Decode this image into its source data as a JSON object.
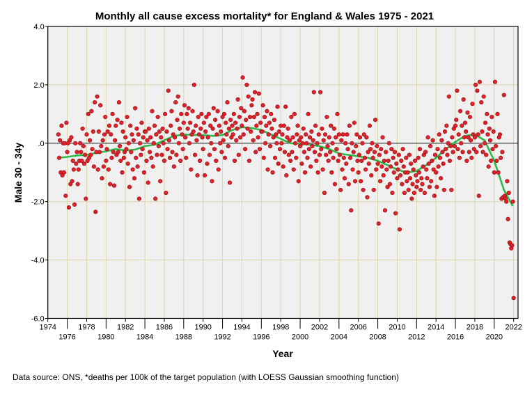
{
  "chart_data": {
    "type": "scatter",
    "title": "Monthly all cause excess mortality* for England & Wales 1975 - 2021",
    "xlabel": "Year",
    "ylabel": "Male 30 - 34y",
    "footnote": "Data source: ONS, *deaths per 100k of the target population (with LOESS Gaussian smoothing function)",
    "xlim": [
      1974,
      2022
    ],
    "ylim": [
      -6.0,
      4.0
    ],
    "x_ticks_upper": [
      "1974",
      "1978",
      "1982",
      "1986",
      "1990",
      "1994",
      "1998",
      "2002",
      "2006",
      "2010",
      "2014",
      "2018",
      "2022"
    ],
    "x_ticks_lower": [
      "1976",
      "1980",
      "1984",
      "1988",
      "1992",
      "1996",
      "2000",
      "2004",
      "2008",
      "2012",
      "2016",
      "2020"
    ],
    "y_ticks": [
      "4.0",
      "2.0",
      ".0",
      "-2.0",
      "-4.0",
      "-6.0"
    ],
    "y_tick_values": [
      4,
      2,
      0,
      -2,
      -4,
      -6
    ],
    "grid": true,
    "colors": {
      "points": "#e0202a",
      "smooth": "#2db84a",
      "grid": "#dcd6aa",
      "plot_bg": "#f0f0f0"
    },
    "series": [
      {
        "name": "monthly excess mortality",
        "start_year": 1975,
        "step": "month",
        "values": [
          0.3,
          -0.5,
          0.1,
          -1.0,
          0.6,
          -1.1,
          0.0,
          -1.0,
          0.0,
          -1.8,
          0.7,
          -0.3,
          0.0,
          -2.2,
          0.1,
          -1.4,
          0.2,
          -1.3,
          -0.6,
          -0.9,
          -2.1,
          0.0,
          -0.7,
          -0.3,
          -1.4,
          -0.9,
          -0.6,
          0.0,
          -0.3,
          -0.6,
          0.5,
          -0.1,
          -0.7,
          -0.4,
          -1.9,
          0.3,
          -0.6,
          1.0,
          -0.5,
          0.1,
          -0.4,
          1.1,
          -0.2,
          0.4,
          -0.8,
          1.4,
          -2.35,
          -0.3,
          1.6,
          -0.9,
          0.4,
          -0.3,
          1.3,
          -0.1,
          -1.2,
          0.1,
          -0.8,
          0.3,
          0.9,
          -0.6,
          -0.2,
          0.4,
          -0.9,
          0.6,
          -1.4,
          0.3,
          -0.5,
          1.0,
          -0.3,
          -1.45,
          0.1,
          0.6,
          -0.4,
          0.8,
          -0.3,
          1.4,
          -0.1,
          -0.6,
          0.7,
          -1.0,
          0.4,
          -0.5,
          -0.3,
          0.2,
          -0.2,
          0.9,
          -0.7,
          0.0,
          -1.5,
          0.6,
          -0.3,
          0.3,
          -0.9,
          0.1,
          -1.2,
          1.2,
          -0.5,
          0.5,
          -0.8,
          0.3,
          -1.9,
          0.0,
          -0.4,
          0.7,
          -0.2,
          0.2,
          -1.0,
          0.4,
          0.4,
          -0.6,
          0.1,
          -1.35,
          0.5,
          -0.3,
          0.2,
          -0.5,
          1.1,
          -0.8,
          0.0,
          0.6,
          -1.9,
          0.3,
          -0.4,
          0.9,
          -0.1,
          0.4,
          -1.3,
          0.2,
          -0.4,
          0.5,
          0.0,
          -0.6,
          1.0,
          -1.7,
          0.4,
          -0.2,
          1.8,
          0.1,
          -0.5,
          0.6,
          1.1,
          -0.3,
          0.3,
          -0.8,
          0.2,
          1.4,
          -0.4,
          0.8,
          1.6,
          0.0,
          0.5,
          -0.6,
          1.0,
          0.3,
          -0.2,
          0.7,
          1.3,
          0.2,
          -0.5,
          1.0,
          0.5,
          1.2,
          0.0,
          0.7,
          -0.9,
          0.3,
          1.1,
          0.4,
          2.0,
          -0.4,
          0.6,
          0.1,
          -1.1,
          0.9,
          0.3,
          -0.6,
          0.5,
          1.0,
          0.2,
          -0.2,
          0.7,
          -1.1,
          0.4,
          0.9,
          -0.7,
          0.2,
          1.0,
          -0.4,
          0.6,
          0.0,
          -1.3,
          0.5,
          1.2,
          -0.2,
          0.8,
          -0.6,
          0.3,
          1.1,
          -0.9,
          0.6,
          0.0,
          0.4,
          -0.3,
          0.9,
          0.1,
          1.0,
          -0.5,
          0.7,
          0.3,
          1.4,
          -0.1,
          0.5,
          -1.35,
          0.8,
          0.2,
          0.6,
          0.3,
          1.0,
          -0.6,
          0.7,
          0.1,
          0.5,
          1.5,
          -0.4,
          0.9,
          0.2,
          1.2,
          0.6,
          2.25,
          0.3,
          1.1,
          -0.2,
          0.8,
          2.0,
          0.5,
          1.6,
          -0.6,
          0.9,
          0.4,
          1.3,
          1.5,
          0.1,
          0.9,
          1.75,
          -0.3,
          0.6,
          1.0,
          0.2,
          1.7,
          -0.2,
          0.7,
          0.4,
          0.4,
          1.3,
          -0.5,
          0.9,
          0.0,
          0.6,
          1.1,
          -0.9,
          0.3,
          0.7,
          -0.1,
          1.0,
          0.5,
          -1.0,
          0.2,
          0.8,
          -0.5,
          0.3,
          0.0,
          1.25,
          -0.7,
          0.4,
          -0.2,
          0.6,
          0.0,
          0.3,
          -0.8,
          0.6,
          -0.3,
          1.25,
          -1.1,
          0.2,
          0.5,
          -0.4,
          0.1,
          -0.6,
          0.9,
          -0.3,
          0.2,
          -0.9,
          1.0,
          0.0,
          -0.5,
          0.3,
          0.6,
          -1.3,
          0.1,
          -0.1,
          0.2,
          -0.7,
          0.0,
          0.5,
          -0.3,
          -1.0,
          0.3,
          0.0,
          -0.5,
          1.0,
          -0.2,
          0.2,
          -0.8,
          0.4,
          -0.1,
          0.1,
          1.75,
          -0.3,
          0.6,
          -0.6,
          0.0,
          -1.0,
          0.3,
          -0.4,
          1.75,
          -0.2,
          0.5,
          -0.9,
          0.1,
          -1.7,
          0.3,
          -0.4,
          0.9,
          -0.1,
          -0.6,
          0.2,
          -0.3,
          0.6,
          -1.0,
          0.0,
          -0.5,
          0.5,
          -1.4,
          0.2,
          -0.2,
          1.0,
          -0.6,
          0.3,
          -0.4,
          -1.6,
          0.1,
          -0.9,
          0.3,
          -0.5,
          -1.2,
          0.0,
          -0.7,
          0.3,
          -0.2,
          -1.4,
          0.6,
          -0.5,
          -2.3,
          0.0,
          -0.9,
          -0.3,
          0.7,
          -1.3,
          -0.1,
          0.3,
          -0.6,
          -1.0,
          -0.4,
          0.2,
          -1.3,
          -0.6,
          0.0,
          -1.6,
          0.3,
          -0.5,
          -0.9,
          0.2,
          -1.85,
          -0.3,
          -0.7,
          0.6,
          -0.2,
          -1.1,
          0.0,
          -0.5,
          -1.6,
          -0.3,
          0.8,
          -0.9,
          -0.1,
          -0.7,
          -2.75,
          -0.4,
          -1.3,
          -0.2,
          -0.8,
          0.2,
          -1.1,
          -0.6,
          -2.3,
          -0.3,
          -0.9,
          -1.5,
          -0.6,
          0.0,
          -1.4,
          -0.8,
          -0.2,
          -1.7,
          -0.5,
          -1.0,
          -0.3,
          -2.4,
          -0.7,
          -1.2,
          -0.9,
          -0.4,
          -2.95,
          -1.1,
          -0.6,
          -1.4,
          -0.2,
          -0.8,
          -1.7,
          -1.0,
          -0.5,
          -1.3,
          -1.0,
          -1.6,
          -0.4,
          -1.2,
          -0.7,
          -1.9,
          -1.4,
          -0.9,
          -1.7,
          -0.6,
          -1.1,
          -1.5,
          -1.3,
          -0.5,
          -1.0,
          -0.2,
          -1.6,
          -1.2,
          -1.4,
          -0.8,
          -0.4,
          -1.7,
          -0.3,
          -0.9,
          -1.2,
          0.2,
          -0.7,
          -1.5,
          -0.1,
          -1.3,
          -0.6,
          0.1,
          -0.9,
          -1.8,
          -0.4,
          -1.0,
          -1.5,
          -0.2,
          -0.8,
          0.3,
          -0.5,
          -1.2,
          0.1,
          -0.3,
          -0.7,
          -1.6,
          0.4,
          -0.2,
          0.6,
          -0.4,
          0.0,
          1.6,
          -0.6,
          -0.1,
          -1.6,
          0.2,
          -0.3,
          0.5,
          -0.1,
          0.6,
          0.8,
          1.8,
          -0.2,
          0.3,
          -0.5,
          1.1,
          0.0,
          0.6,
          -0.3,
          1.5,
          0.2,
          0.7,
          0.4,
          -0.6,
          1.05,
          0.2,
          -0.3,
          0.9,
          0.1,
          -0.5,
          1.35,
          0.3,
          -0.2,
          0.2,
          2.0,
          -0.3,
          1.8,
          0.3,
          -1.8,
          2.1,
          -0.1,
          1.4,
          0.4,
          -0.3,
          1.6,
          0.0,
          0.7,
          -0.4,
          1.0,
          0.3,
          -0.8,
          0.5,
          0.1,
          -0.6,
          0.9,
          -0.2,
          0.4,
          -1.0,
          2.1,
          -0.1,
          -0.6,
          1.0,
          -1.0,
          0.2,
          0.3,
          -0.5,
          -1.9,
          -0.3,
          -1.85,
          1.65,
          -1.8,
          -1.9,
          -2.0,
          -1.3,
          -2.6,
          -1.7,
          -3.4,
          -3.45,
          -3.6,
          -3.5,
          -2.0,
          -5.3
        ]
      },
      {
        "name": "LOESS smooth",
        "x": [
          1975,
          1976,
          1977,
          1978,
          1979,
          1980,
          1981,
          1982,
          1983,
          1984,
          1985,
          1986,
          1987,
          1988,
          1989,
          1990,
          1991,
          1992,
          1993,
          1994,
          1995,
          1996,
          1997,
          1998,
          1999,
          2000,
          2001,
          2002,
          2003,
          2004,
          2005,
          2006,
          2007,
          2008,
          2009,
          2010,
          2011,
          2012,
          2013,
          2014,
          2015,
          2016,
          2017,
          2018,
          2019,
          2020,
          2021,
          2021.9
        ],
        "values": [
          -0.5,
          -0.47,
          -0.42,
          -0.4,
          -0.33,
          -0.28,
          -0.2,
          -0.25,
          -0.22,
          -0.1,
          -0.05,
          0.1,
          0.25,
          0.3,
          0.28,
          0.28,
          0.25,
          0.28,
          0.45,
          0.55,
          0.52,
          0.45,
          0.3,
          0.15,
          0.0,
          -0.02,
          -0.05,
          -0.1,
          -0.2,
          -0.35,
          -0.4,
          -0.45,
          -0.5,
          -0.6,
          -0.75,
          -0.9,
          -1.0,
          -0.95,
          -0.75,
          -0.5,
          -0.2,
          0.05,
          0.25,
          0.3,
          0.1,
          -0.6,
          -1.6,
          -2.15
        ]
      }
    ]
  }
}
